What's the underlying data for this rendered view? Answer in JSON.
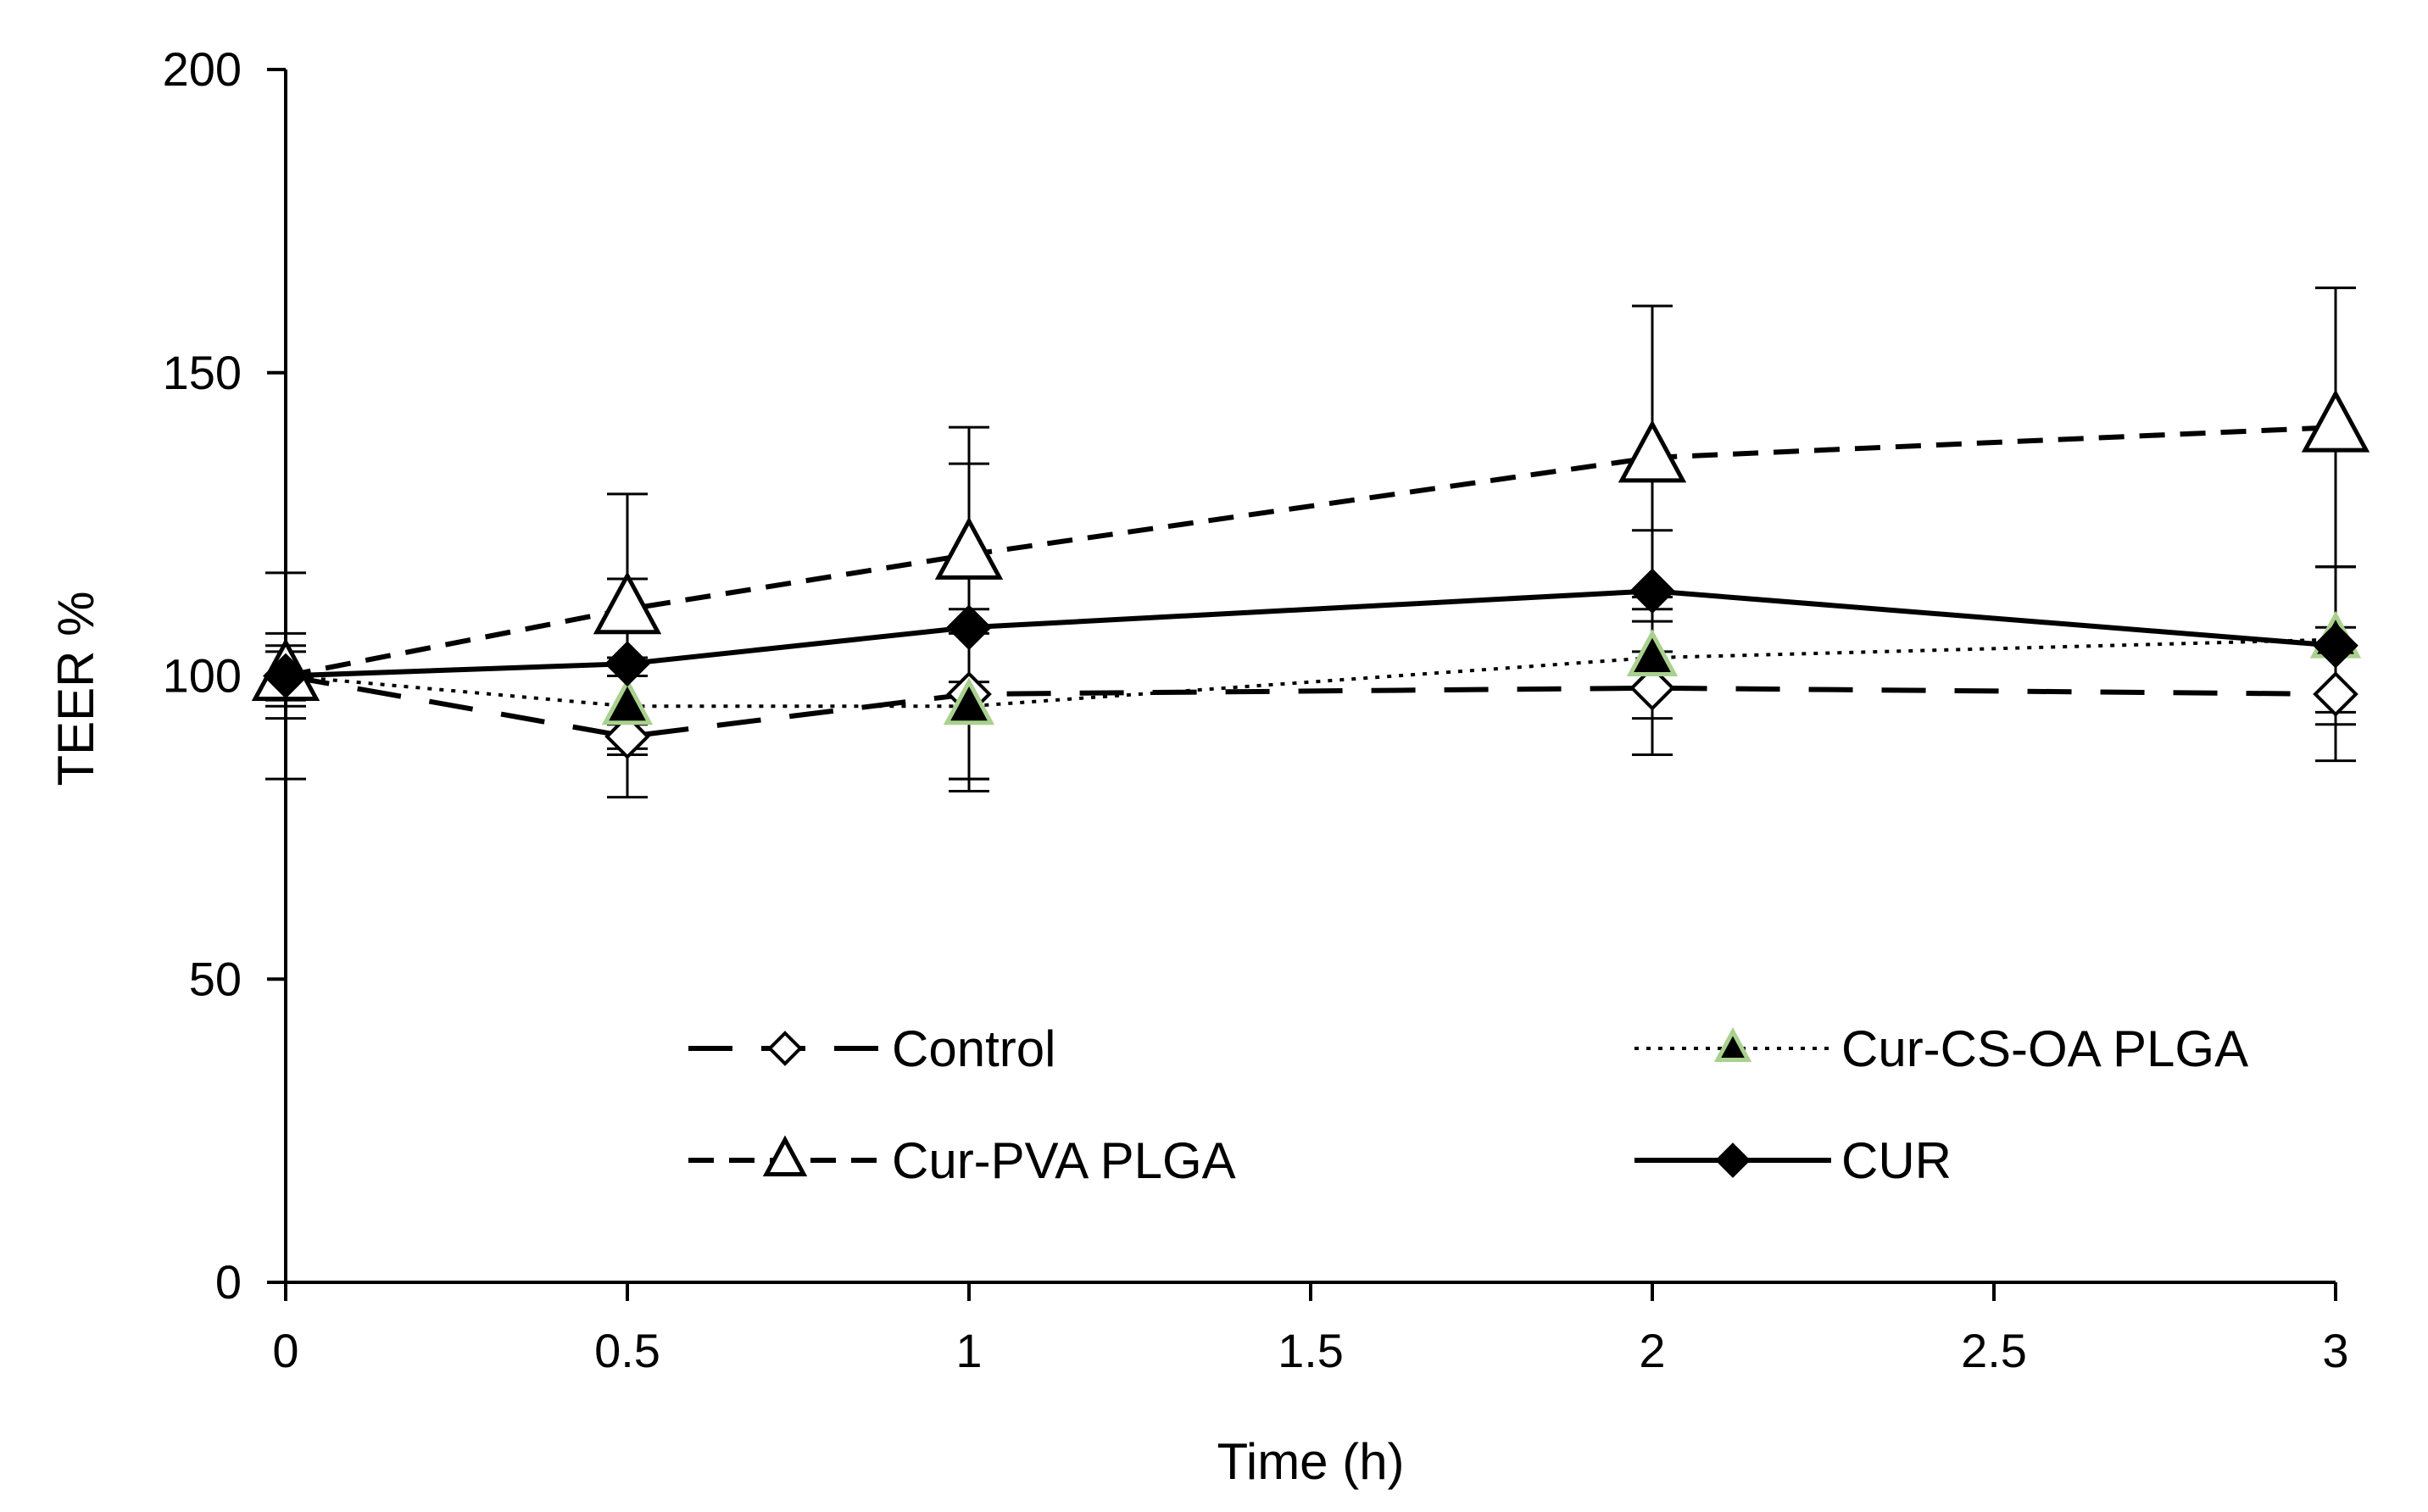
{
  "chart_data": {
    "type": "line",
    "title": "",
    "xlabel": "Time (h)",
    "ylabel": "TEER %",
    "xlim": [
      0,
      3
    ],
    "ylim": [
      0,
      200
    ],
    "x_ticks": [
      0,
      0.5,
      1,
      1.5,
      2,
      2.5,
      3
    ],
    "x_tick_labels": [
      "0",
      "0.5",
      "1",
      "1.5",
      "2",
      "2.5",
      "3"
    ],
    "y_ticks": [
      0,
      50,
      100,
      150,
      200
    ],
    "y_tick_labels": [
      "0",
      "50",
      "100",
      "150",
      "200"
    ],
    "grid": false,
    "legend_position": "bottom-inside",
    "series": [
      {
        "name": "Control",
        "line_style": "long-dash",
        "marker": "open-diamond",
        "color": "#000000",
        "marker_fill": "#ffffff",
        "x": [
          0,
          0.5,
          1,
          2,
          3
        ],
        "values": [
          100,
          90,
          97,
          98,
          97
        ],
        "error": [
          7,
          10,
          14,
          11,
          11
        ]
      },
      {
        "name": "Cur-CS-OA PLGA",
        "line_style": "dotted",
        "marker": "filled-triangle",
        "color": "#000000",
        "marker_fill": "#000000",
        "marker_outline": "#a9d18e",
        "x": [
          0,
          0.5,
          1,
          2,
          3
        ],
        "values": [
          100,
          95,
          95,
          103,
          106
        ],
        "error": [
          5,
          8,
          12,
          10,
          12
        ]
      },
      {
        "name": "Cur-PVA PLGA",
        "line_style": "dashed",
        "marker": "open-triangle",
        "color": "#000000",
        "marker_fill": "#ffffff",
        "x": [
          0,
          0.5,
          1,
          2,
          3
        ],
        "values": [
          100,
          111,
          120,
          136,
          141
        ],
        "error": [
          4,
          19,
          21,
          25,
          23
        ]
      },
      {
        "name": "CUR",
        "line_style": "solid",
        "marker": "filled-diamond",
        "color": "#000000",
        "marker_fill": "#000000",
        "x": [
          0,
          0.5,
          1,
          2,
          3
        ],
        "values": [
          100,
          102,
          108,
          114,
          105
        ],
        "error": [
          17,
          14,
          27,
          10,
          13
        ]
      }
    ]
  }
}
